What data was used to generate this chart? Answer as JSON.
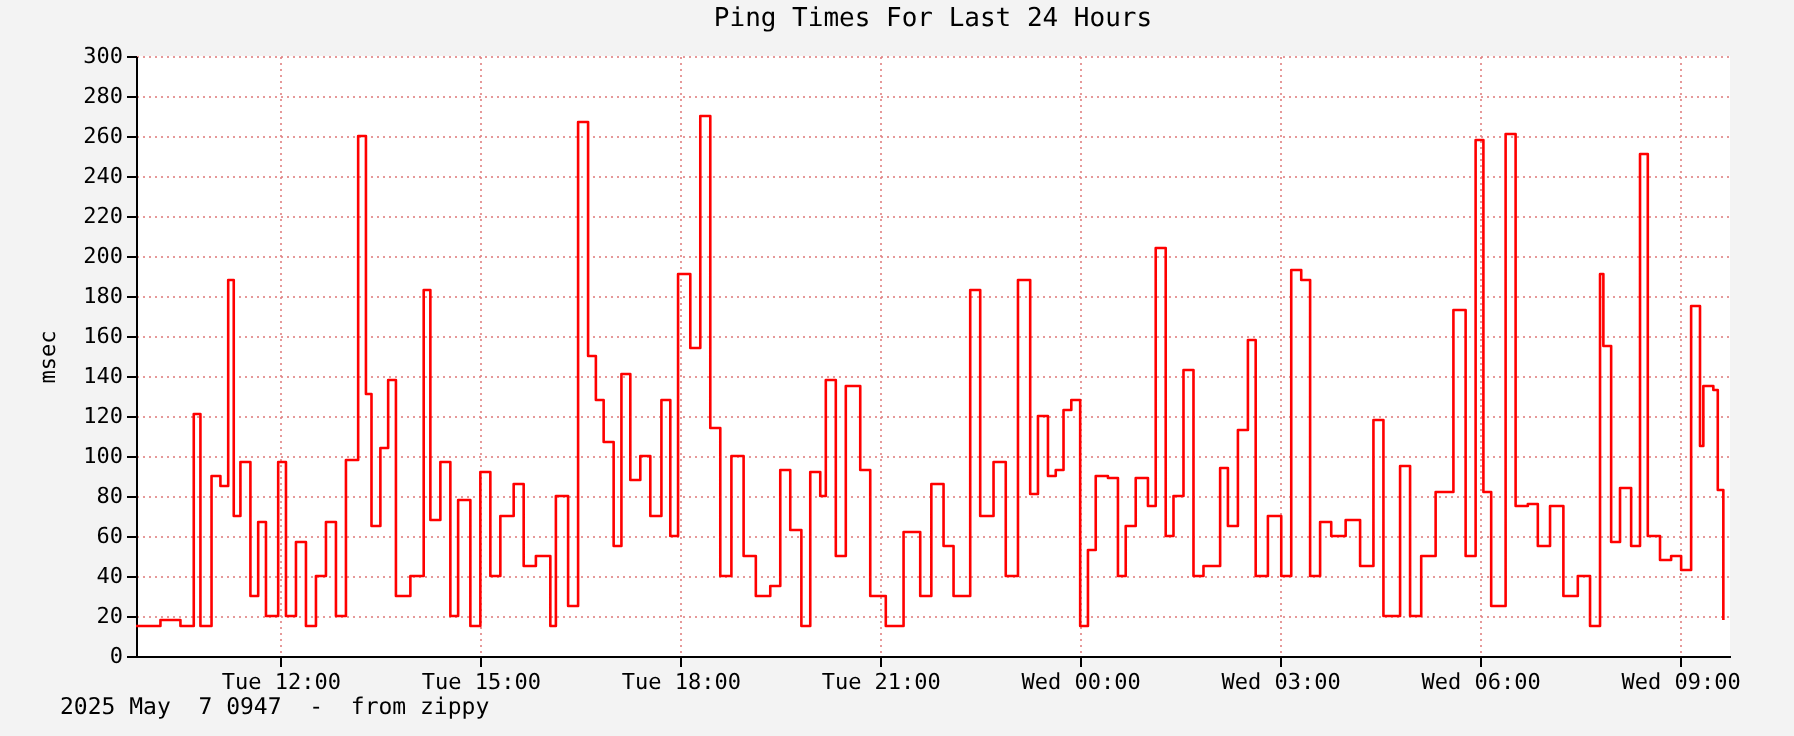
{
  "chart_data": {
    "type": "step",
    "title": "Ping Times For Last 24 Hours",
    "ylabel": "msec",
    "annotations": [
      "2025 May  7 0947  -  from zippy"
    ],
    "x": [
      "2025-05-06T09:50",
      "2025-05-06T10:12",
      "2025-05-06T10:30",
      "2025-05-06T10:42",
      "2025-05-06T10:48",
      "2025-05-06T10:58",
      "2025-05-06T11:06",
      "2025-05-06T11:13",
      "2025-05-06T11:18",
      "2025-05-06T11:24",
      "2025-05-06T11:33",
      "2025-05-06T11:40",
      "2025-05-06T11:47",
      "2025-05-06T11:58",
      "2025-05-06T12:05",
      "2025-05-06T12:14",
      "2025-05-06T12:23",
      "2025-05-06T12:32",
      "2025-05-06T12:41",
      "2025-05-06T12:50",
      "2025-05-06T12:59",
      "2025-05-06T13:10",
      "2025-05-06T13:17",
      "2025-05-06T13:22",
      "2025-05-06T13:30",
      "2025-05-06T13:37",
      "2025-05-06T13:44",
      "2025-05-06T13:57",
      "2025-05-06T14:09",
      "2025-05-06T14:15",
      "2025-05-06T14:24",
      "2025-05-06T14:33",
      "2025-05-06T14:40",
      "2025-05-06T14:51",
      "2025-05-06T15:00",
      "2025-05-06T15:09",
      "2025-05-06T15:18",
      "2025-05-06T15:30",
      "2025-05-06T15:39",
      "2025-05-06T15:50",
      "2025-05-06T16:03",
      "2025-05-06T16:08",
      "2025-05-06T16:19",
      "2025-05-06T16:28",
      "2025-05-06T16:37",
      "2025-05-06T16:44",
      "2025-05-06T16:51",
      "2025-05-06T17:00",
      "2025-05-06T17:07",
      "2025-05-06T17:15",
      "2025-05-06T17:24",
      "2025-05-06T17:33",
      "2025-05-06T17:43",
      "2025-05-06T17:51",
      "2025-05-06T17:58",
      "2025-05-06T18:09",
      "2025-05-06T18:18",
      "2025-05-06T18:27",
      "2025-05-06T18:36",
      "2025-05-06T18:46",
      "2025-05-06T18:57",
      "2025-05-06T19:08",
      "2025-05-06T19:21",
      "2025-05-06T19:30",
      "2025-05-06T19:39",
      "2025-05-06T19:49",
      "2025-05-06T19:57",
      "2025-05-06T20:06",
      "2025-05-06T20:11",
      "2025-05-06T20:20",
      "2025-05-06T20:29",
      "2025-05-06T20:42",
      "2025-05-06T20:51",
      "2025-05-06T21:05",
      "2025-05-06T21:21",
      "2025-05-06T21:36",
      "2025-05-06T21:46",
      "2025-05-06T21:57",
      "2025-05-06T22:06",
      "2025-05-06T22:21",
      "2025-05-06T22:30",
      "2025-05-06T22:42",
      "2025-05-06T22:53",
      "2025-05-06T23:04",
      "2025-05-06T23:15",
      "2025-05-06T23:22",
      "2025-05-06T23:31",
      "2025-05-06T23:38",
      "2025-05-06T23:45",
      "2025-05-06T23:52",
      "2025-05-07T00:00",
      "2025-05-07T00:07",
      "2025-05-07T00:14",
      "2025-05-07T00:25",
      "2025-05-07T00:34",
      "2025-05-07T00:41",
      "2025-05-07T00:50",
      "2025-05-07T01:01",
      "2025-05-07T01:08",
      "2025-05-07T01:17",
      "2025-05-07T01:24",
      "2025-05-07T01:33",
      "2025-05-07T01:42",
      "2025-05-07T01:51",
      "2025-05-07T02:06",
      "2025-05-07T02:13",
      "2025-05-07T02:22",
      "2025-05-07T02:31",
      "2025-05-07T02:38",
      "2025-05-07T02:49",
      "2025-05-07T03:01",
      "2025-05-07T03:10",
      "2025-05-07T03:19",
      "2025-05-07T03:27",
      "2025-05-07T03:36",
      "2025-05-07T03:46",
      "2025-05-07T03:59",
      "2025-05-07T04:12",
      "2025-05-07T04:24",
      "2025-05-07T04:33",
      "2025-05-07T04:48",
      "2025-05-07T04:57",
      "2025-05-07T05:07",
      "2025-05-07T05:20",
      "2025-05-07T05:27",
      "2025-05-07T05:36",
      "2025-05-07T05:47",
      "2025-05-07T05:56",
      "2025-05-07T06:03",
      "2025-05-07T06:10",
      "2025-05-07T06:23",
      "2025-05-07T06:32",
      "2025-05-07T06:43",
      "2025-05-07T06:52",
      "2025-05-07T07:03",
      "2025-05-07T07:15",
      "2025-05-07T07:28",
      "2025-05-07T07:39",
      "2025-05-07T07:48",
      "2025-05-07T07:51",
      "2025-05-07T07:58",
      "2025-05-07T08:06",
      "2025-05-07T08:16",
      "2025-05-07T08:24",
      "2025-05-07T08:31",
      "2025-05-07T08:42",
      "2025-05-07T08:52",
      "2025-05-07T09:01",
      "2025-05-07T09:10",
      "2025-05-07T09:18",
      "2025-05-07T09:21",
      "2025-05-07T09:30",
      "2025-05-07T09:34",
      "2025-05-07T09:39"
    ],
    "series": [
      {
        "color": "#ff0000",
        "values": [
          15,
          18,
          15,
          121,
          15,
          90,
          85,
          188,
          70,
          97,
          30,
          67,
          20,
          97,
          20,
          57,
          15,
          40,
          67,
          20,
          98,
          260,
          131,
          65,
          104,
          138,
          30,
          40,
          183,
          68,
          97,
          20,
          78,
          15,
          92,
          40,
          70,
          86,
          45,
          50,
          15,
          80,
          25,
          267,
          150,
          128,
          107,
          55,
          141,
          88,
          100,
          70,
          128,
          60,
          191,
          154,
          270,
          114,
          40,
          100,
          50,
          30,
          35,
          93,
          63,
          15,
          92,
          80,
          138,
          50,
          135,
          93,
          30,
          15,
          62,
          30,
          86,
          55,
          30,
          183,
          70,
          97,
          40,
          188,
          81,
          120,
          90,
          93,
          123,
          128,
          15,
          53,
          90,
          89,
          40,
          65,
          89,
          75,
          204,
          60,
          80,
          143,
          40,
          45,
          94,
          65,
          113,
          158,
          40,
          70,
          40,
          193,
          188,
          40,
          67,
          60,
          68,
          45,
          118,
          20,
          95,
          20,
          50,
          82,
          82,
          173,
          50,
          258,
          82,
          25,
          261,
          75,
          76,
          55,
          75,
          30,
          40,
          15,
          191,
          155,
          57,
          84,
          55,
          251,
          60,
          48,
          50,
          43,
          175,
          105,
          135,
          133,
          83,
          18
        ]
      }
    ],
    "xlim": [
      "2025-05-06T09:50",
      "2025-05-07T09:45"
    ],
    "xticks": [
      {
        "value": "2025-05-06T12:00",
        "label": "Tue 12:00"
      },
      {
        "value": "2025-05-06T15:00",
        "label": "Tue 15:00"
      },
      {
        "value": "2025-05-06T18:00",
        "label": "Tue 18:00"
      },
      {
        "value": "2025-05-06T21:00",
        "label": "Tue 21:00"
      },
      {
        "value": "2025-05-07T00:00",
        "label": "Wed 00:00"
      },
      {
        "value": "2025-05-07T03:00",
        "label": "Wed 03:00"
      },
      {
        "value": "2025-05-07T06:00",
        "label": "Wed 06:00"
      },
      {
        "value": "2025-05-07T09:00",
        "label": "Wed 09:00"
      }
    ],
    "ylim": [
      0,
      300
    ],
    "yticks": [
      0,
      20,
      40,
      60,
      80,
      100,
      120,
      140,
      160,
      180,
      200,
      220,
      240,
      260,
      280,
      300
    ],
    "grid": true,
    "marker": "none",
    "line_style": "solid"
  }
}
